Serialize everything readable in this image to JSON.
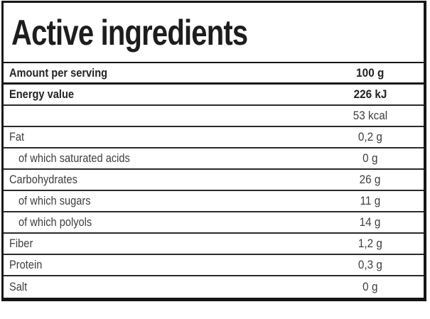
{
  "nutrition_label": {
    "title": "Active ingredients",
    "serving_header": {
      "label": "Amount per serving",
      "value": "100 g"
    },
    "rows": [
      {
        "label": "Energy value",
        "value": "226 kJ"
      },
      {
        "label": "",
        "value": "53 kcal"
      },
      {
        "label": "Fat",
        "value": "0,2 g"
      },
      {
        "label": "of which saturated acids",
        "value": "0 g"
      },
      {
        "label": "Carbohydrates",
        "value": "26 g"
      },
      {
        "label": "of which sugars",
        "value": "11 g"
      },
      {
        "label": "of which polyols",
        "value": "14 g"
      },
      {
        "label": "Fiber",
        "value": "1,2 g"
      },
      {
        "label": "Protein",
        "value": "0,3 g"
      },
      {
        "label": "Salt",
        "value": "0 g"
      }
    ],
    "colors": {
      "border": "#161616",
      "divider": "#2b2b2b",
      "title_text": "#1d1d1d",
      "bold_text": "#232323",
      "regular_text": "#3e3e3e",
      "background": "#ffffff"
    }
  }
}
